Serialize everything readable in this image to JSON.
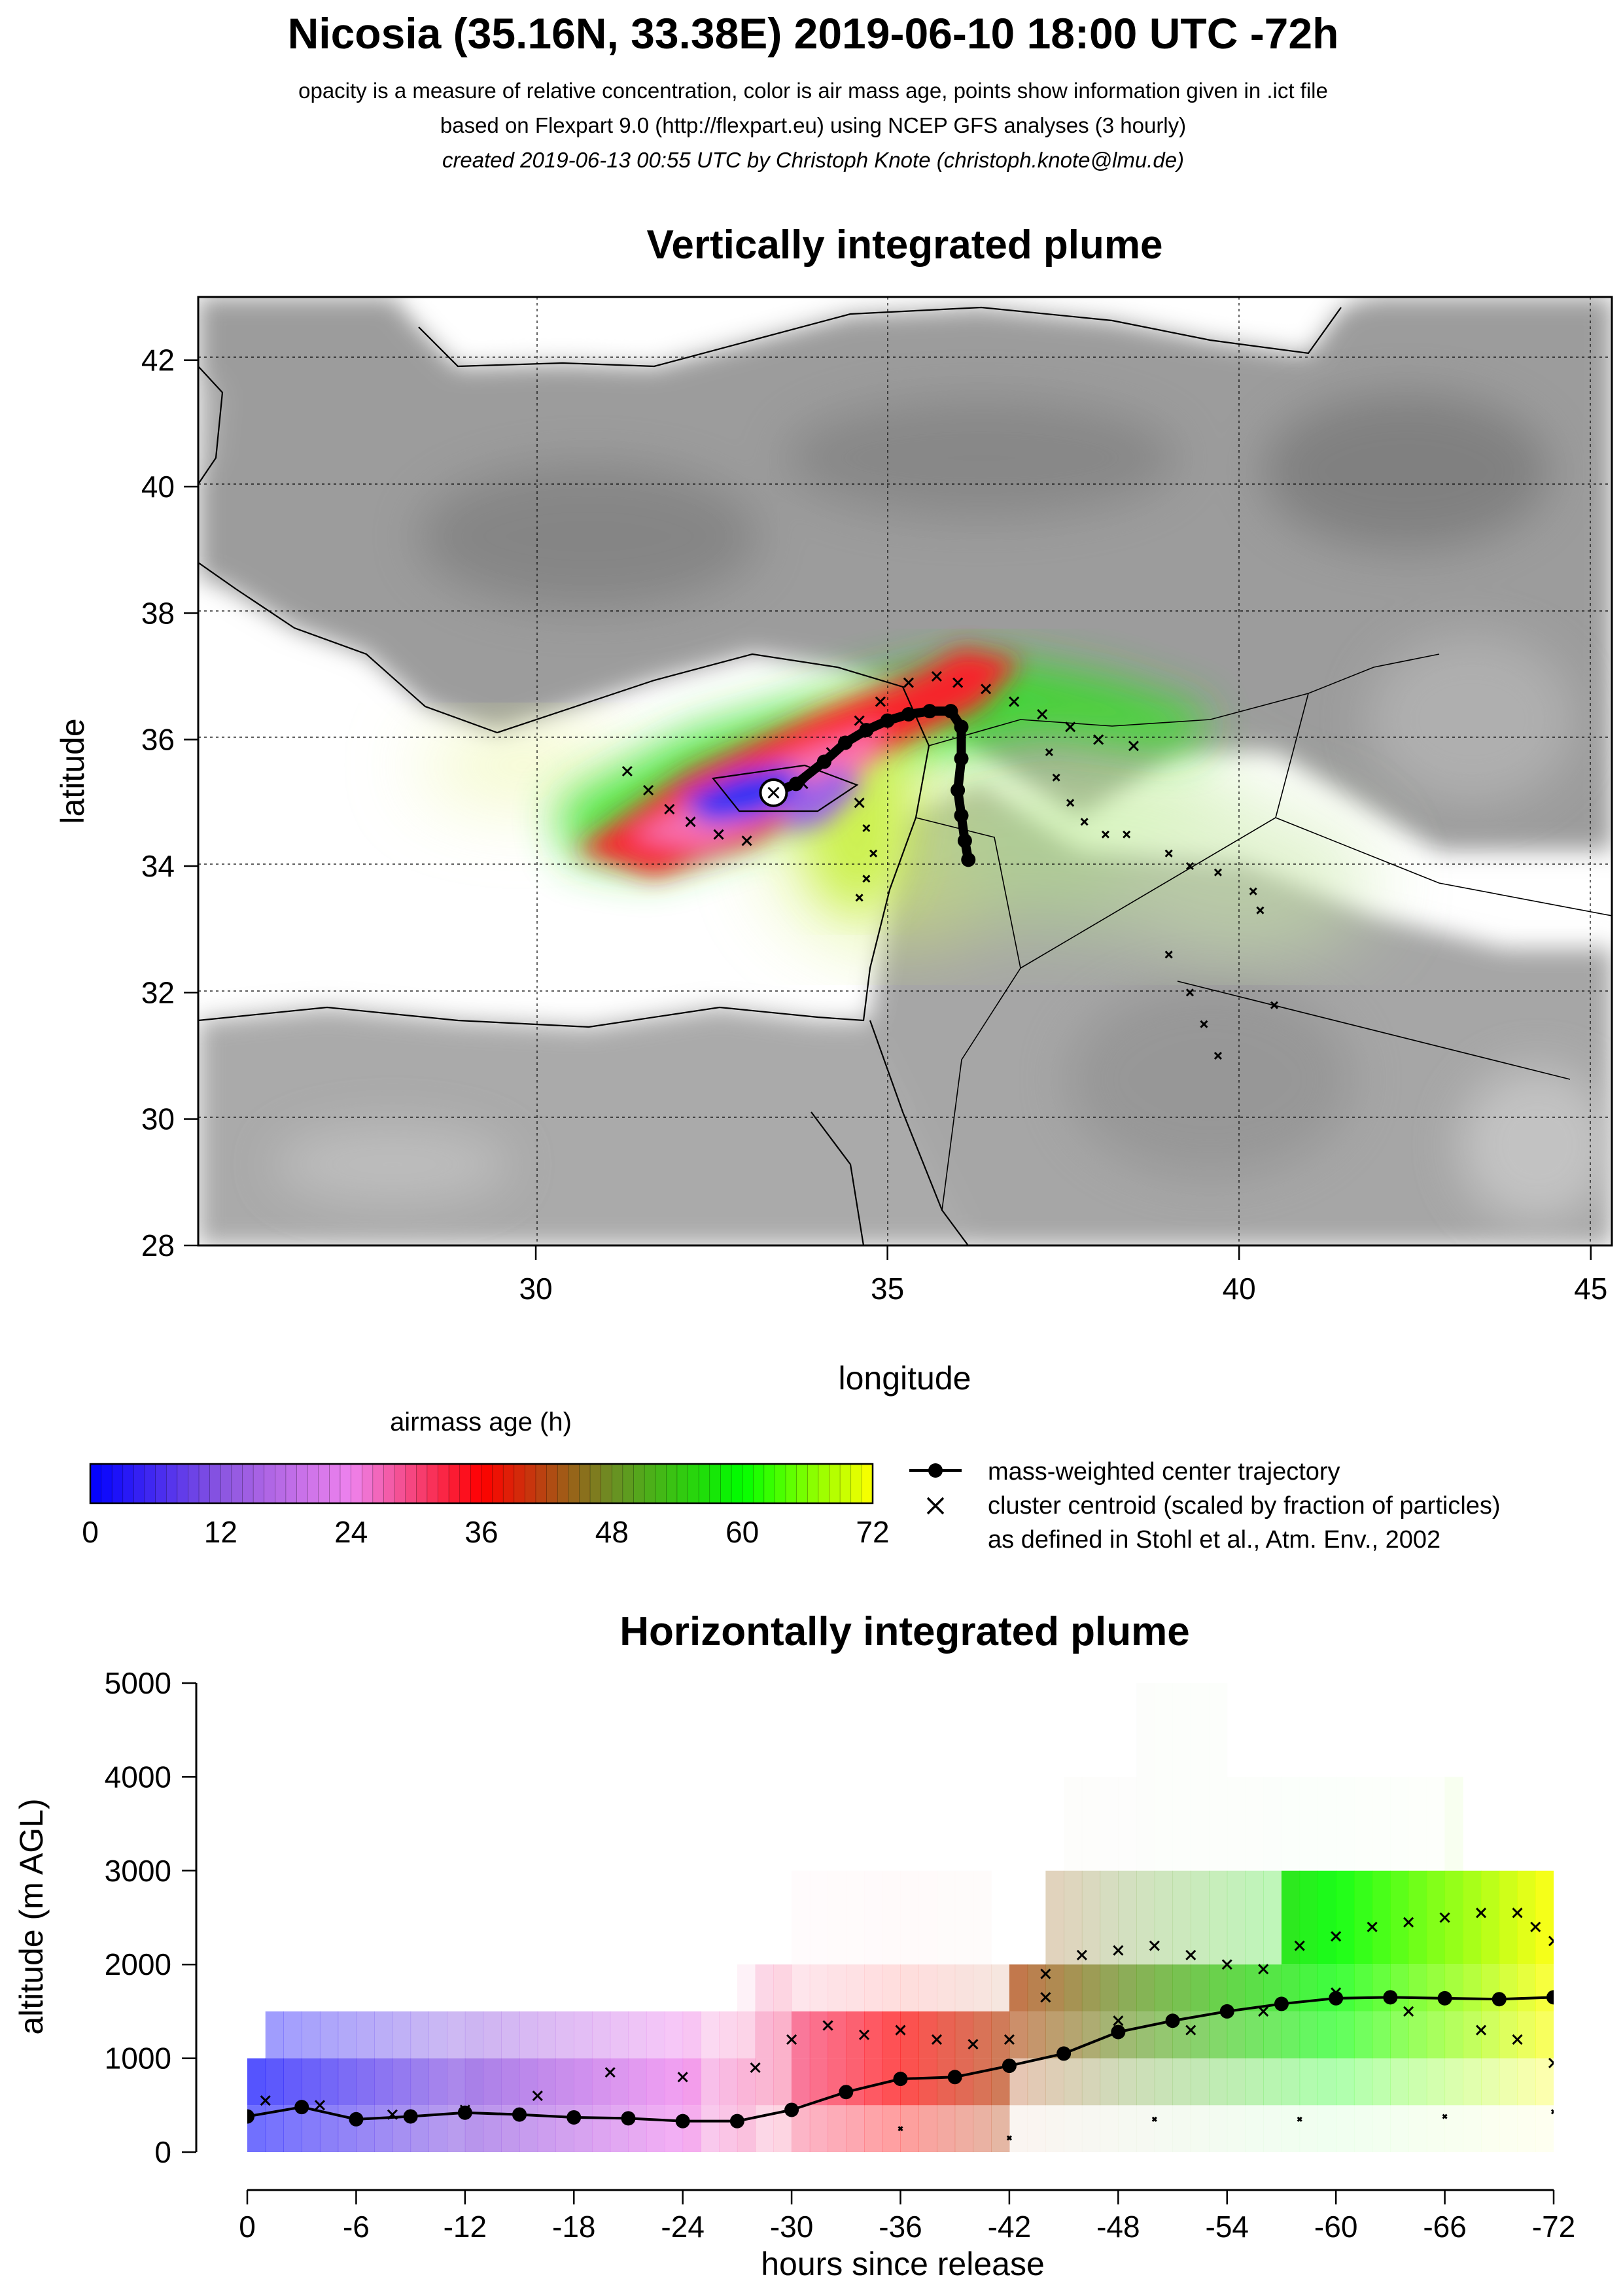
{
  "header": {
    "title": "Nicosia (35.16N, 33.38E) 2019-06-10 18:00 UTC -72h",
    "subtitle1": "opacity is a measure of relative concentration, color is air mass age, points show information given in .ict file",
    "subtitle2": "based on Flexpart 9.0 (http://flexpart.eu) using NCEP GFS analyses (3 hourly)",
    "subtitle3": "created 2019-06-13 00:55 UTC by Christoph Knote (christoph.knote@lmu.de)"
  },
  "legend": {
    "colorbar_title": "airmass age (h)",
    "colorbar_ticks": [
      "0",
      "12",
      "24",
      "36",
      "48",
      "60",
      "72"
    ],
    "trajectory_label": "mass-weighted center trajectory",
    "cluster_label1": "cluster centroid (scaled by fraction of particles)",
    "cluster_label2": "as defined in Stohl et al., Atm. Env., 2002"
  },
  "colors": {
    "age_0": "#0000ff",
    "age_12": "#8a55e0",
    "age_24": "#ee82ee",
    "age_36": "#ff0000",
    "age_48": "#6b8e23",
    "age_60": "#00ff00",
    "age_72": "#ffff00",
    "land": "#9a9a9a",
    "sea": "#ffffff"
  },
  "chart_data": [
    {
      "type": "scatter",
      "title": "Vertically integrated plume",
      "xlabel": "longitude",
      "ylabel": "latitude",
      "xlim": [
        25.2,
        45.3
      ],
      "ylim": [
        28,
        43
      ],
      "x_ticks": [
        "30",
        "35",
        "40",
        "45"
      ],
      "y_ticks": [
        "28",
        "30",
        "32",
        "34",
        "36",
        "38",
        "40",
        "42"
      ],
      "grid": true,
      "release_point": {
        "lon": 33.38,
        "lat": 35.16
      },
      "center_trajectory": {
        "lon": [
          33.38,
          33.7,
          34.1,
          34.4,
          34.7,
          35.0,
          35.3,
          35.6,
          35.9,
          36.05,
          36.05,
          36.0,
          36.05,
          36.1,
          36.15
        ],
        "lat": [
          35.16,
          35.3,
          35.65,
          35.95,
          36.15,
          36.3,
          36.4,
          36.45,
          36.45,
          36.2,
          35.7,
          35.2,
          34.8,
          34.4,
          34.1
        ]
      },
      "cluster_centroids": {
        "lon": [
          31.3,
          31.6,
          31.9,
          32.2,
          32.6,
          33.0,
          33.8,
          34.2,
          34.6,
          34.9,
          35.3,
          35.7,
          36.0,
          36.4,
          36.8,
          37.2,
          37.6,
          38.0,
          38.5,
          34.6,
          34.7,
          34.8,
          34.7,
          34.6,
          37.3,
          37.4,
          37.6,
          37.8,
          38.1,
          38.4,
          39.0,
          39.3,
          39.7,
          40.2,
          40.3,
          39.0,
          39.3,
          39.5,
          39.7,
          40.5
        ],
        "lat": [
          35.5,
          35.2,
          34.9,
          34.7,
          34.5,
          34.4,
          35.3,
          35.8,
          36.3,
          36.6,
          36.9,
          37.0,
          36.9,
          36.8,
          36.6,
          36.4,
          36.2,
          36.0,
          35.9,
          35.0,
          34.6,
          34.2,
          33.8,
          33.5,
          35.8,
          35.4,
          35.0,
          34.7,
          34.5,
          34.5,
          34.2,
          34.0,
          33.9,
          33.6,
          33.3,
          32.6,
          32.0,
          31.5,
          31.0,
          31.8
        ]
      }
    },
    {
      "type": "scatter",
      "title": "Horizontally integrated plume",
      "xlabel": "hours since release",
      "ylabel": "altitude (m AGL)",
      "xlim": [
        0,
        -72
      ],
      "ylim": [
        0,
        5000
      ],
      "x_ticks": [
        "0",
        "-6",
        "-12",
        "-18",
        "-24",
        "-30",
        "-36",
        "-42",
        "-48",
        "-54",
        "-60",
        "-66",
        "-72"
      ],
      "y_ticks": [
        "0",
        "1000",
        "2000",
        "3000",
        "4000",
        "5000"
      ],
      "center_trajectory": {
        "hours": [
          0,
          -3,
          -6,
          -9,
          -12,
          -15,
          -18,
          -21,
          -24,
          -27,
          -30,
          -33,
          -36,
          -39,
          -42,
          -45,
          -48,
          -51,
          -54,
          -57,
          -60,
          -63,
          -66,
          -69,
          -72
        ],
        "altitude": [
          380,
          480,
          350,
          380,
          420,
          400,
          370,
          360,
          330,
          330,
          450,
          640,
          780,
          800,
          920,
          1050,
          1280,
          1400,
          1500,
          1580,
          1640,
          1650,
          1640,
          1630,
          1650
        ]
      },
      "cluster_centroids": {
        "hours": [
          -1,
          -4,
          -8,
          -12,
          -16,
          -20,
          -24,
          -28,
          -30,
          -32,
          -34,
          -36,
          -38,
          -40,
          -42,
          -44,
          -46,
          -48,
          -50,
          -52,
          -54,
          -56,
          -58,
          -60,
          -62,
          -64,
          -66,
          -68,
          -70,
          -71,
          -72,
          -44,
          -48,
          -52,
          -56,
          -60,
          -64,
          -68,
          -70,
          -72,
          -36,
          -42,
          -50,
          -58,
          -66,
          -72
        ],
        "altitude": [
          550,
          500,
          400,
          450,
          600,
          850,
          800,
          900,
          1200,
          1350,
          1250,
          1300,
          1200,
          1150,
          1200,
          1650,
          2100,
          2150,
          2200,
          2100,
          2000,
          1950,
          2200,
          2300,
          2400,
          2450,
          2500,
          2550,
          2550,
          2400,
          2250,
          1900,
          1400,
          1300,
          1500,
          1700,
          1500,
          1300,
          1200,
          950,
          250,
          150,
          350,
          350,
          380,
          430
        ]
      }
    }
  ]
}
